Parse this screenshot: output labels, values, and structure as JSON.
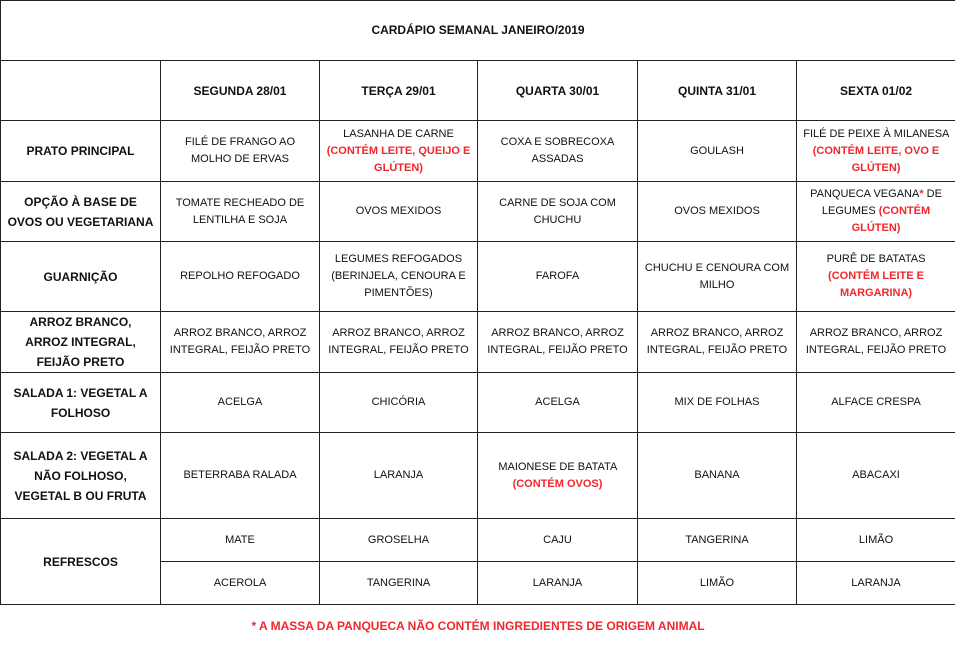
{
  "title": "CARDÁPIO SEMANAL JANEIRO/2019",
  "columns": [
    "SEGUNDA   28/01",
    "TERÇA 29/01",
    "QUARTA 30/01",
    "QUINTA 31/01",
    "SEXTA 01/02"
  ],
  "rows": [
    {
      "label": "PRATO PRINCIPAL",
      "cells": [
        [
          "FILÉ DE FRANGO AO MOLHO DE ERVAS"
        ],
        [
          "LASANHA DE CARNE",
          {
            "text": "(CONTÉM LEITE, QUEIJO E GLÚTEN)",
            "color": "#f0282d"
          }
        ],
        [
          "COXA E SOBRECOXA ASSADAS"
        ],
        [
          "GOULASH"
        ],
        [
          "FILÉ DE PEIXE À MILANESA",
          {
            "text": "(CONTÉM LEITE, OVO E GLÚTEN)",
            "color": "#f0282d"
          }
        ]
      ]
    },
    {
      "label": "OPÇÃO À BASE DE OVOS OU VEGETARIANA",
      "cells": [
        [
          "TOMATE RECHEADO DE LENTILHA E SOJA"
        ],
        [
          "OVOS MEXIDOS"
        ],
        [
          "CARNE DE SOJA COM CHUCHU"
        ],
        [
          "OVOS MEXIDOS"
        ],
        [
          "PANQUECA VEGANA",
          {
            "text": "*",
            "color": "#f0282d"
          },
          " DE LEGUMES ",
          {
            "text": "(CONTÉM GLÚTEN)",
            "color": "#f0282d"
          }
        ]
      ]
    },
    {
      "label": "GUARNIÇÃO",
      "cells": [
        [
          "REPOLHO REFOGADO"
        ],
        [
          "LEGUMES REFOGADOS (BERINJELA, CENOURA E PIMENTÕES)"
        ],
        [
          "FAROFA"
        ],
        [
          "CHUCHU E CENOURA COM MILHO"
        ],
        [
          "PURÊ DE BATATAS",
          {
            "text": "(CONTÉM LEITE E MARGARINA)",
            "color": "#f0282d"
          }
        ]
      ]
    },
    {
      "label": "ARROZ BRANCO, ARROZ INTEGRAL, FEIJÃO PRETO",
      "cells": [
        [
          "ARROZ BRANCO, ARROZ INTEGRAL, FEIJÃO PRETO"
        ],
        [
          "ARROZ BRANCO, ARROZ INTEGRAL, FEIJÃO PRETO"
        ],
        [
          "ARROZ BRANCO, ARROZ INTEGRAL, FEIJÃO PRETO"
        ],
        [
          "ARROZ BRANCO, ARROZ INTEGRAL, FEIJÃO PRETO"
        ],
        [
          "ARROZ BRANCO, ARROZ INTEGRAL, FEIJÃO PRETO"
        ]
      ]
    },
    {
      "label": "SALADA 1: VEGETAL A FOLHOSO",
      "cells": [
        [
          "ACELGA"
        ],
        [
          "CHICÓRIA"
        ],
        [
          "ACELGA"
        ],
        [
          "MIX DE FOLHAS"
        ],
        [
          "ALFACE CRESPA"
        ]
      ]
    },
    {
      "label": "SALADA 2: VEGETAL A NÃO FOLHOSO, VEGETAL B OU FRUTA",
      "cells": [
        [
          "BETERRABA RALADA"
        ],
        [
          "LARANJA"
        ],
        [
          "MAIONESE DE BATATA",
          {
            "text": "(CONTÉM OVOS)",
            "color": "#f0282d"
          }
        ],
        [
          "BANANA"
        ],
        [
          "ABACAXI"
        ]
      ]
    }
  ],
  "refrescos": {
    "label": "REFRESCOS",
    "rows": [
      [
        "MATE",
        "GROSELHA",
        "CAJU",
        "TANGERINA",
        "LIMÃO"
      ],
      [
        "ACEROLA",
        "TANGERINA",
        "LARANJA",
        "LIMÃO",
        "LARANJA"
      ]
    ]
  },
  "footer": {
    "text": "* A MASSA DA PANQUECA NÃO CONTÉM INGREDIENTES DE ORIGEM ANIMAL",
    "color": "#f0282d"
  }
}
